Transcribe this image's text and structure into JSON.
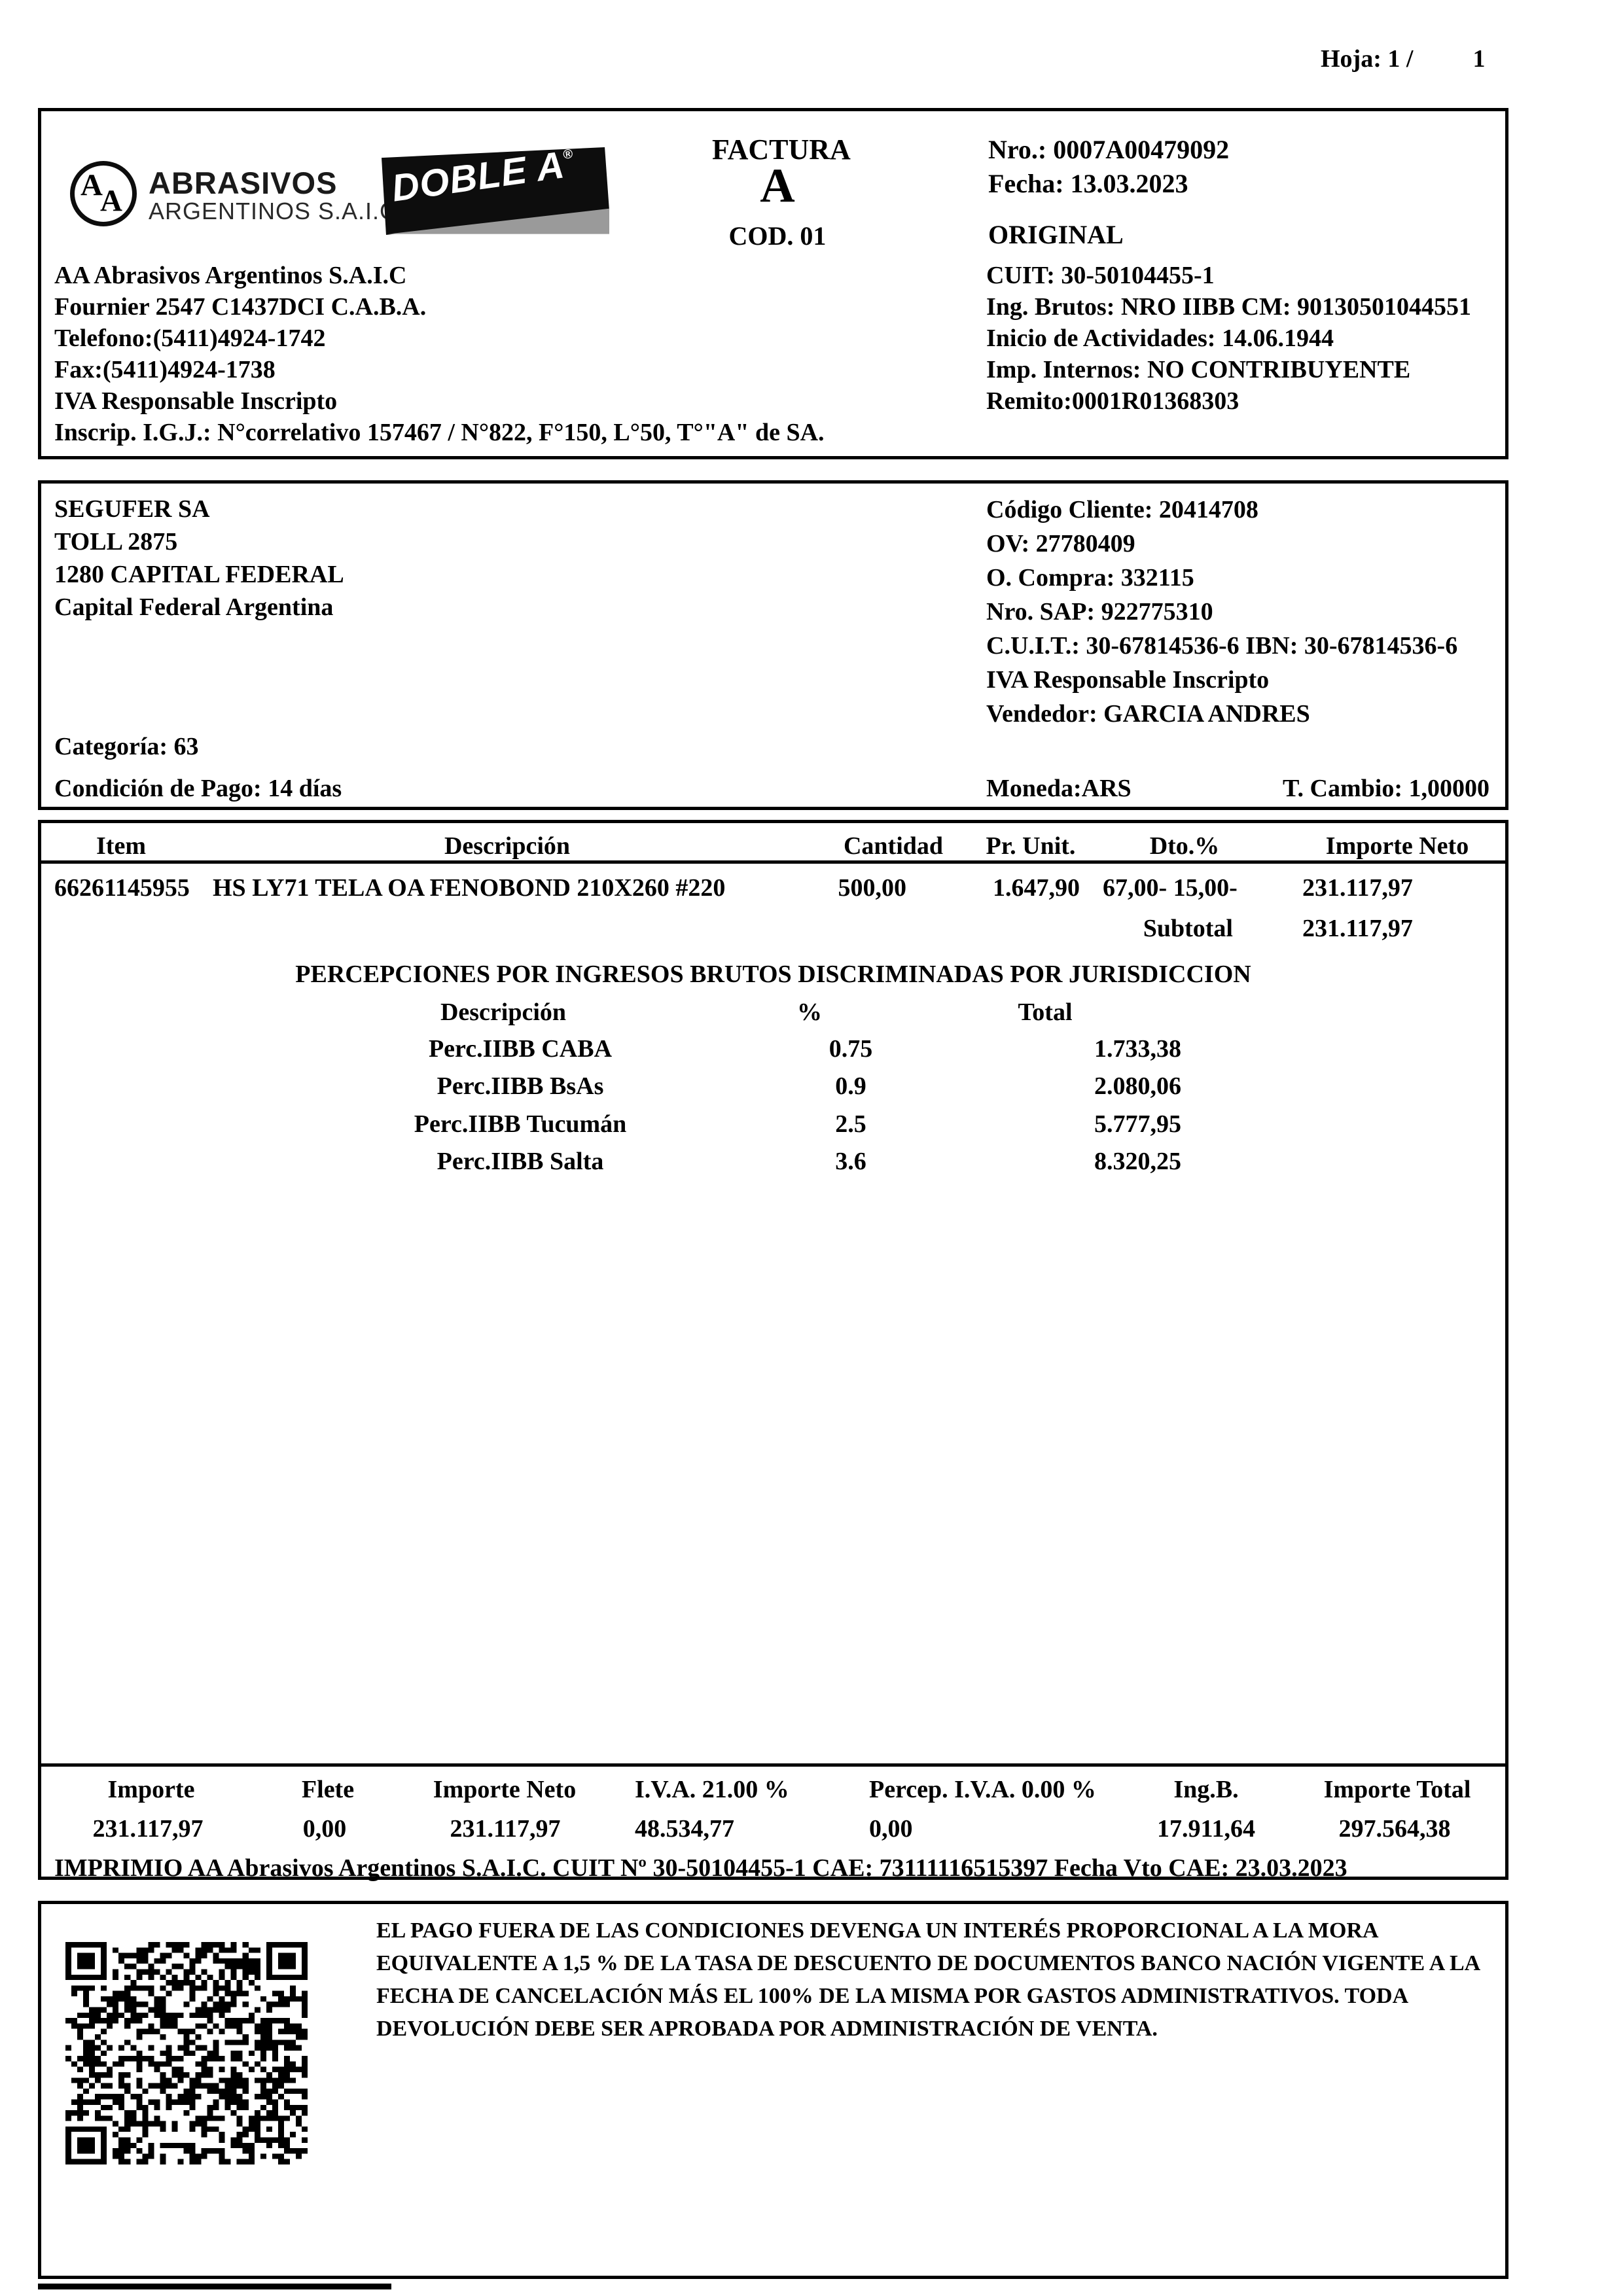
{
  "page": {
    "hoja_label": "Hoja: 1 /",
    "hoja_value": "1"
  },
  "header": {
    "logo": {
      "monogram_a1": "A",
      "monogram_a2": "A",
      "brand_top": "ABRASIVOS",
      "brand_bottom": "ARGENTINOS S.A.I.C.",
      "doble_a": "DOBLE A",
      "registered": "®"
    },
    "doc_type": "FACTURA",
    "doc_letter": "A",
    "doc_code": "COD. 01",
    "nro": "Nro.: 0007A00479092",
    "fecha": "Fecha: 13.03.2023",
    "original": "ORIGINAL",
    "company_lines": [
      "AA Abrasivos Argentinos S.A.I.C",
      "Fournier 2547 C1437DCI C.A.B.A.",
      "Telefono:(5411)4924-1742",
      "Fax:(5411)4924-1738",
      "IVA Responsable Inscripto",
      "Inscrip. I.G.J.: N°correlativo 157467 / N°822, F°150, L°50, T°\"A\" de SA."
    ],
    "fiscal_lines": [
      "CUIT: 30-50104455-1",
      "Ing. Brutos: NRO IIBB CM: 90130501044551",
      "Inicio de Actividades: 14.06.1944",
      "Imp. Internos: NO CONTRIBUYENTE",
      "Remito:0001R01368303"
    ]
  },
  "customer": {
    "name": "SEGUFER SA",
    "address1": "TOLL 2875",
    "address2": "1280 CAPITAL FEDERAL",
    "address3": "Capital Federal Argentina",
    "categoria": "Categoría: 63",
    "condicion": "Condición de Pago: 14 días",
    "right_lines": [
      "Código Cliente: 20414708",
      "OV: 27780409",
      "O. Compra: 332115",
      "Nro. SAP: 922775310",
      "C.U.I.T.: 30-67814536-6  IBN: 30-67814536-6",
      "IVA Responsable Inscripto",
      "Vendedor: GARCIA ANDRES"
    ],
    "moneda": "Moneda:ARS",
    "t_cambio": "T. Cambio: 1,00000"
  },
  "items": {
    "headers": {
      "item": "Item",
      "desc": "Descripción",
      "qty": "Cantidad",
      "price": "Pr. Unit.",
      "dto": "Dto.%",
      "neto": "Importe Neto"
    },
    "row": {
      "item": "66261145955",
      "desc": "HS LY71 TELA OA FENOBOND 210X260 #220",
      "qty": "500,00",
      "price": "1.647,90",
      "dto": "67,00- 15,00-",
      "neto": "231.117,97"
    },
    "subtotal_label": "Subtotal",
    "subtotal_value": "231.117,97"
  },
  "perc": {
    "title": "PERCEPCIONES POR INGRESOS BRUTOS DISCRIMINADAS POR JURISDICCION",
    "headers": {
      "desc": "Descripción",
      "pct": "%",
      "total": "Total"
    },
    "rows": [
      {
        "label": "Perc.IIBB CABA",
        "pct": "0.75",
        "total": "1.733,38"
      },
      {
        "label": "Perc.IIBB BsAs",
        "pct": "0.9",
        "total": "2.080,06"
      },
      {
        "label": "Perc.IIBB Tucumán",
        "pct": "2.5",
        "total": "5.777,95"
      },
      {
        "label": "Perc.IIBB Salta",
        "pct": "3.6",
        "total": "8.320,25"
      }
    ]
  },
  "totals": {
    "headers": {
      "importe": "Importe",
      "flete": "Flete",
      "neto": "Importe Neto",
      "iva": "I.V.A. 21.00 %",
      "percep": "Percep. I.V.A. 0.00 %",
      "ingb": "Ing.B.",
      "total": "Importe Total"
    },
    "values": {
      "importe": "231.117,97",
      "flete": "0,00",
      "neto": "231.117,97",
      "iva": "48.534,77",
      "percep": "0,00",
      "ingb": "17.911,64",
      "total": "297.564,38"
    },
    "imprimio": "IMPRIMIO AA Abrasivos Argentinos S.A.I.C. CUIT Nº 30-50104455-1  CAE: 73111116515397 Fecha Vto CAE: 23.03.2023"
  },
  "legal": {
    "lines": [
      "EL PAGO FUERA DE LAS CONDICIONES DEVENGA UN INTERÉS PROPORCIONAL A LA MORA",
      "EQUIVALENTE A 1,5 % DE LA TASA DE DESCUENTO DE DOCUMENTOS BANCO NACIÓN VIGENTE A LA",
      "FECHA DE CANCELACIÓN MÁS EL 100% DE LA MISMA POR GASTOS ADMINISTRATIVOS. TODA",
      "DEVOLUCIÓN DEBE SER APROBADA POR ADMINISTRACIÓN DE VENTA."
    ]
  }
}
